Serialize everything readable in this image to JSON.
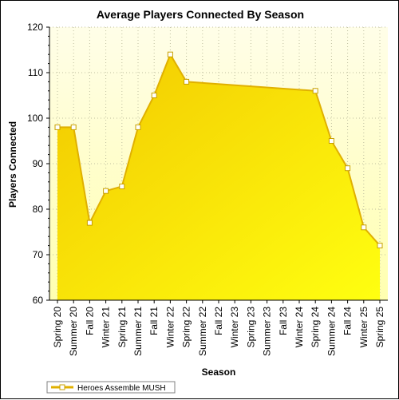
{
  "chart_data": {
    "type": "area",
    "title": "Average Players Connected By Season",
    "xlabel": "Season",
    "ylabel": "Players Connected",
    "ylim": [
      60,
      120
    ],
    "y_ticks": [
      60,
      70,
      80,
      90,
      100,
      110,
      120
    ],
    "grid": true,
    "legend_position": "bottom-left",
    "categories": [
      "Spring 20",
      "Summer 20",
      "Fall 20",
      "Winter 21",
      "Spring 21",
      "Summer 21",
      "Fall 21",
      "Winter 22",
      "Spring 22",
      "Summer 22",
      "Fall 22",
      "Winter 23",
      "Spring 23",
      "Summer 23",
      "Fall 23",
      "Winter 24",
      "Spring 24",
      "Summer 24",
      "Fall 24",
      "Winter 25",
      "Spring 25"
    ],
    "series": [
      {
        "name": "Heroes Assemble MUSH",
        "points": [
          {
            "x": "Spring 20",
            "y": 98
          },
          {
            "x": "Summer 20",
            "y": 98
          },
          {
            "x": "Fall 20",
            "y": 77
          },
          {
            "x": "Winter 21",
            "y": 84
          },
          {
            "x": "Spring 21",
            "y": 85
          },
          {
            "x": "Summer 21",
            "y": 98
          },
          {
            "x": "Fall 21",
            "y": 105
          },
          {
            "x": "Winter 22",
            "y": 114
          },
          {
            "x": "Spring 22",
            "y": 108
          },
          {
            "x": "Spring 24",
            "y": 106
          },
          {
            "x": "Summer 24",
            "y": 95
          },
          {
            "x": "Fall 24",
            "y": 89
          },
          {
            "x": "Winter 25",
            "y": 76
          },
          {
            "x": "Spring 25",
            "y": 72
          }
        ]
      }
    ],
    "colors": {
      "plot_background_top": "#fffee8",
      "plot_background_bottom": "#ffffb0",
      "area_fill_dark": "#f2c800",
      "area_fill_light": "#ffff10",
      "area_line": "#e0b000",
      "marker_fill": "#ffffff",
      "marker_stroke": "#c8a000",
      "grid_line": "#bfbfa0"
    }
  }
}
